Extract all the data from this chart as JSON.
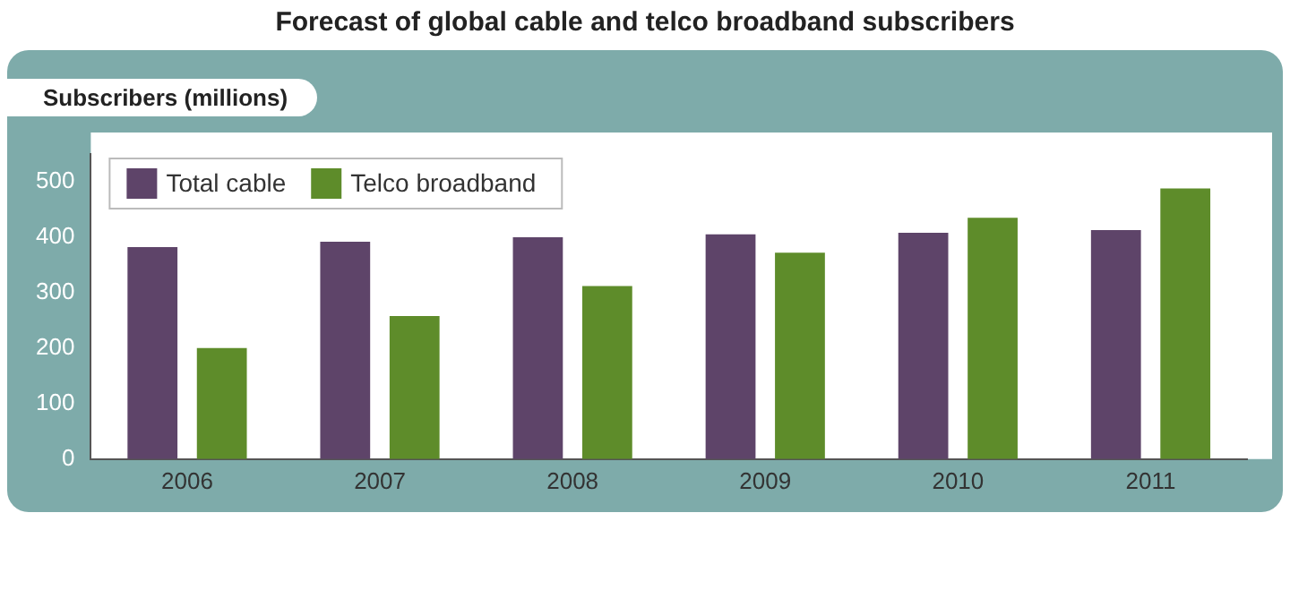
{
  "chart_data": {
    "type": "bar",
    "title": "Forecast of global cable and telco broadband subscribers",
    "ylabel": "Subscribers (millions)",
    "categories": [
      "2006",
      "2007",
      "2008",
      "2009",
      "2010",
      "2011"
    ],
    "series": [
      {
        "name": "Total cable",
        "color": "#5e4469",
        "values": [
          382,
          392,
          400,
          405,
          408,
          413
        ]
      },
      {
        "name": "Telco broadband",
        "color": "#5e8c2a",
        "values": [
          200,
          258,
          312,
          372,
          435,
          488
        ]
      }
    ],
    "ylim": [
      0,
      550
    ],
    "yticks": [
      0,
      100,
      200,
      300,
      400,
      500
    ],
    "grid": false,
    "legend": "top left"
  }
}
